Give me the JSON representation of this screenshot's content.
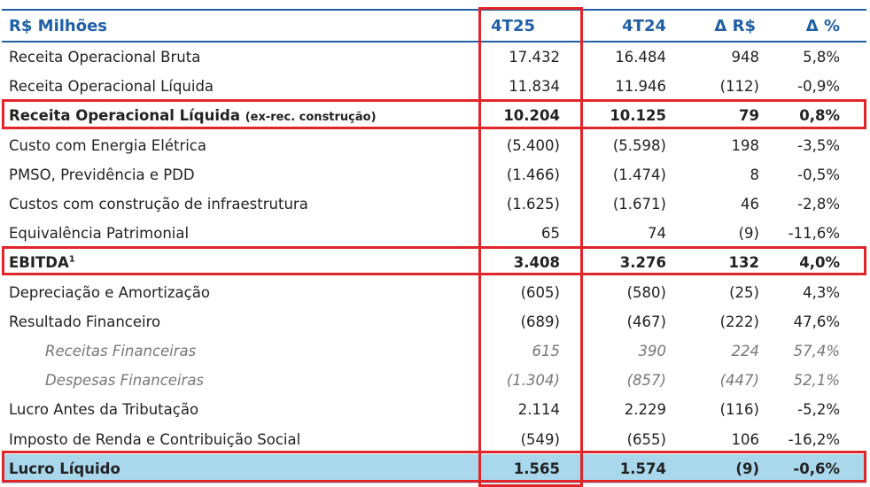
{
  "header": {
    "label": "R$ Milhões",
    "col1": "4T25",
    "col2": "4T24",
    "col3": "Δ R$",
    "col4": "Δ %"
  },
  "rows": [
    {
      "label": "Receita Operacional Bruta",
      "v1": "17.432",
      "v2": "16.484",
      "v3": "948",
      "v4": "5,8%"
    },
    {
      "label": "Receita Operacional Líquida",
      "v1": "11.834",
      "v2": "11.946",
      "v3": "(112)",
      "v4": "-0,9%"
    },
    {
      "label": "Receita Operacional Líquida",
      "note": "(ex-rec. construção)",
      "v1": "10.204",
      "v2": "10.125",
      "v3": "79",
      "v4": "0,8%"
    },
    {
      "label": "Custo com Energia Elétrica",
      "v1": "(5.400)",
      "v2": "(5.598)",
      "v3": "198",
      "v4": "-3,5%"
    },
    {
      "label": "PMSO, Previdência e PDD",
      "v1": "(1.466)",
      "v2": "(1.474)",
      "v3": "8",
      "v4": "-0,5%"
    },
    {
      "label": "Custos com construção de infraestrutura",
      "v1": "(1.625)",
      "v2": "(1.671)",
      "v3": "46",
      "v4": "-2,8%"
    },
    {
      "label": "Equivalência Patrimonial",
      "v1": "65",
      "v2": "74",
      "v3": "(9)",
      "v4": "-11,6%"
    },
    {
      "label": "EBITDA",
      "sup": "1",
      "v1": "3.408",
      "v2": "3.276",
      "v3": "132",
      "v4": "4,0%"
    },
    {
      "label": "Depreciação e Amortização",
      "v1": "(605)",
      "v2": "(580)",
      "v3": "(25)",
      "v4": "4,3%"
    },
    {
      "label": "Resultado Financeiro",
      "v1": "(689)",
      "v2": "(467)",
      "v3": "(222)",
      "v4": "47,6%"
    },
    {
      "label": "Receitas Financeiras",
      "v1": "615",
      "v2": "390",
      "v3": "224",
      "v4": "57,4%"
    },
    {
      "label": "Despesas Financeiras",
      "v1": "(1.304)",
      "v2": "(857)",
      "v3": "(447)",
      "v4": "52,1%"
    },
    {
      "label": "Lucro Antes da Tributação",
      "v1": "2.114",
      "v2": "2.229",
      "v3": "(116)",
      "v4": "-5,2%"
    },
    {
      "label": "Imposto de Renda e Contribuição Social",
      "v1": "(549)",
      "v2": "(655)",
      "v3": "106",
      "v4": "-16,2%"
    },
    {
      "label": "Lucro Líquido",
      "v1": "1.565",
      "v2": "1.574",
      "v3": "(9)",
      "v4": "-0,6%"
    }
  ],
  "colors": {
    "header": "#1f5fa6",
    "highlight_box": "#e0262b",
    "total_row_bg": "#a9d7ec"
  }
}
